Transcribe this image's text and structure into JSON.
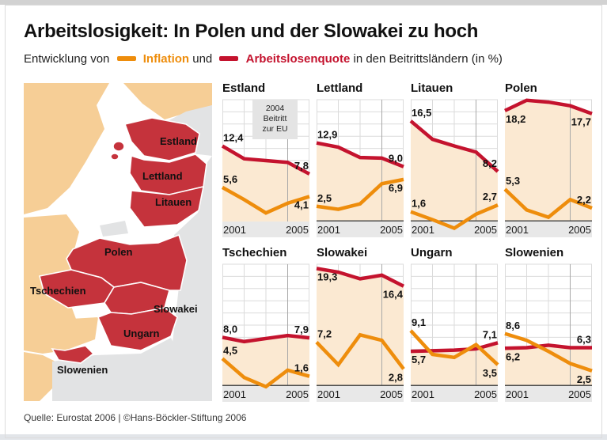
{
  "page": {
    "title": "Arbeitslosigkeit: In Polen und der Slowakei zu hoch",
    "subtitle": {
      "prefix": "Entwicklung von",
      "inflation_label": "Inflation",
      "conjunction": "und",
      "unemployment_label": "Arbeitslosenquote",
      "suffix": "in den Beitrittsländern (in %)"
    },
    "source": "Quelle: Eurostat 2006 | ©Hans-Böckler-Stiftung 2006"
  },
  "colors": {
    "inflation": "#ee8d0c",
    "unemployment": "#c4132e",
    "area_fill": "#fbe9d2",
    "grid": "#dbdbdb",
    "accession_line": "#a8a8a8",
    "baseline": "#4d4d4d",
    "axis_band": "#e8e8e8",
    "annotation_box": "#e4e4e4",
    "map_member": "#c5333c",
    "map_old_eu": "#f6ce96",
    "map_non_eu": "#e2e3e4",
    "map_sea": "#ffffff"
  },
  "axis": {
    "start": "2001",
    "end": "2005"
  },
  "annotation": {
    "line1": "2004",
    "line2": "Beitritt",
    "line3": "zur EU"
  },
  "map": {
    "labels": [
      "Estland",
      "Lettland",
      "Litauen",
      "Polen",
      "Tschechien",
      "Slowakei",
      "Ungarn",
      "Slowenien"
    ]
  },
  "chart_data": {
    "type": "line",
    "x": [
      2001,
      2002,
      2003,
      2004,
      2005
    ],
    "ylim": [
      0,
      20
    ],
    "grid_step": 2,
    "accession_year": 2004,
    "series_names": {
      "inflation": "Inflation",
      "unemployment": "Arbeitslosenquote"
    },
    "unit": "%",
    "charts": [
      {
        "country": "Estland",
        "unemployment": [
          12.4,
          10.3,
          10.0,
          9.7,
          7.8
        ],
        "inflation": [
          5.6,
          3.6,
          1.4,
          3.0,
          4.1
        ],
        "baseline": false,
        "annotation": true,
        "value_labels": [
          {
            "series": "unemployment",
            "point": "start",
            "text": "12,4",
            "pos": "above"
          },
          {
            "series": "unemployment",
            "point": "end",
            "text": "7,8",
            "pos": "above"
          },
          {
            "series": "inflation",
            "point": "start",
            "text": "5,6",
            "pos": "above"
          },
          {
            "series": "inflation",
            "point": "end",
            "text": "4,1",
            "pos": "below"
          }
        ]
      },
      {
        "country": "Lettland",
        "unemployment": [
          12.9,
          12.2,
          10.5,
          10.4,
          9.0
        ],
        "inflation": [
          2.5,
          2.0,
          2.9,
          6.2,
          6.9
        ],
        "baseline": true,
        "annotation": false,
        "value_labels": [
          {
            "series": "unemployment",
            "point": "start",
            "text": "12,9",
            "pos": "above"
          },
          {
            "series": "unemployment",
            "point": "end",
            "text": "9,0",
            "pos": "above"
          },
          {
            "series": "inflation",
            "point": "start",
            "text": "2,5",
            "pos": "above"
          },
          {
            "series": "inflation",
            "point": "end",
            "text": "6,9",
            "pos": "below"
          }
        ]
      },
      {
        "country": "Litauen",
        "unemployment": [
          16.5,
          13.5,
          12.4,
          11.4,
          8.2
        ],
        "inflation": [
          1.6,
          0.3,
          -1.1,
          1.2,
          2.7
        ],
        "baseline": true,
        "annotation": false,
        "value_labels": [
          {
            "series": "unemployment",
            "point": "start",
            "text": "16,5",
            "pos": "above"
          },
          {
            "series": "unemployment",
            "point": "end",
            "text": "8,2",
            "pos": "above"
          },
          {
            "series": "inflation",
            "point": "start",
            "text": "1,6",
            "pos": "above"
          },
          {
            "series": "inflation",
            "point": "end",
            "text": "2,7",
            "pos": "above"
          }
        ]
      },
      {
        "country": "Polen",
        "unemployment": [
          18.2,
          19.9,
          19.6,
          19.0,
          17.7
        ],
        "inflation": [
          5.3,
          1.9,
          0.7,
          3.6,
          2.2
        ],
        "baseline": true,
        "annotation": false,
        "value_labels": [
          {
            "series": "unemployment",
            "point": "start",
            "text": "18,2",
            "pos": "below"
          },
          {
            "series": "unemployment",
            "point": "end",
            "text": "17,7",
            "pos": "below"
          },
          {
            "series": "inflation",
            "point": "start",
            "text": "5,3",
            "pos": "above"
          },
          {
            "series": "inflation",
            "point": "end",
            "text": "2,2",
            "pos": "above"
          }
        ]
      },
      {
        "country": "Tschechien",
        "unemployment": [
          8.0,
          7.3,
          7.8,
          8.3,
          7.9
        ],
        "inflation": [
          4.5,
          1.4,
          -0.1,
          2.6,
          1.6
        ],
        "baseline": true,
        "annotation": false,
        "value_labels": [
          {
            "series": "unemployment",
            "point": "start",
            "text": "8,0",
            "pos": "above"
          },
          {
            "series": "unemployment",
            "point": "end",
            "text": "7,9",
            "pos": "above"
          },
          {
            "series": "inflation",
            "point": "start",
            "text": "4,5",
            "pos": "above"
          },
          {
            "series": "inflation",
            "point": "end",
            "text": "1,6",
            "pos": "above"
          }
        ]
      },
      {
        "country": "Slowakei",
        "unemployment": [
          19.3,
          18.7,
          17.6,
          18.2,
          16.4
        ],
        "inflation": [
          7.2,
          3.5,
          8.4,
          7.5,
          2.8
        ],
        "baseline": true,
        "annotation": false,
        "value_labels": [
          {
            "series": "unemployment",
            "point": "start",
            "text": "19,3",
            "pos": "below"
          },
          {
            "series": "unemployment",
            "point": "end",
            "text": "16,4",
            "pos": "below"
          },
          {
            "series": "inflation",
            "point": "start",
            "text": "7,2",
            "pos": "above"
          },
          {
            "series": "inflation",
            "point": "end",
            "text": "2,8",
            "pos": "below"
          }
        ]
      },
      {
        "country": "Ungarn",
        "unemployment": [
          5.7,
          5.8,
          5.9,
          6.1,
          7.1
        ],
        "inflation": [
          9.1,
          5.2,
          4.7,
          6.8,
          3.5
        ],
        "baseline": true,
        "annotation": false,
        "value_labels": [
          {
            "series": "unemployment",
            "point": "start",
            "text": "5,7",
            "pos": "below"
          },
          {
            "series": "unemployment",
            "point": "end",
            "text": "7,1",
            "pos": "above"
          },
          {
            "series": "inflation",
            "point": "start",
            "text": "9,1",
            "pos": "above"
          },
          {
            "series": "inflation",
            "point": "end",
            "text": "3,5",
            "pos": "below"
          }
        ]
      },
      {
        "country": "Slowenien",
        "unemployment": [
          6.2,
          6.3,
          6.7,
          6.3,
          6.3
        ],
        "inflation": [
          8.6,
          7.5,
          5.7,
          3.7,
          2.5
        ],
        "baseline": true,
        "annotation": false,
        "value_labels": [
          {
            "series": "unemployment",
            "point": "start",
            "text": "6,2",
            "pos": "below"
          },
          {
            "series": "unemployment",
            "point": "end",
            "text": "6,3",
            "pos": "above"
          },
          {
            "series": "inflation",
            "point": "start",
            "text": "8,6",
            "pos": "above"
          },
          {
            "series": "inflation",
            "point": "end",
            "text": "2,5",
            "pos": "below"
          }
        ]
      }
    ]
  }
}
